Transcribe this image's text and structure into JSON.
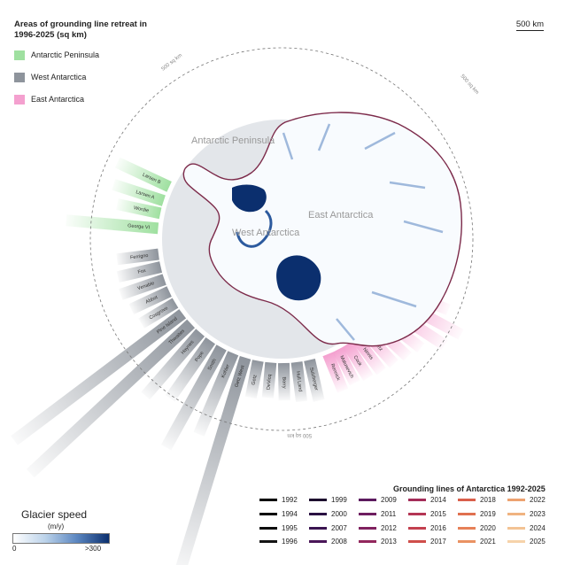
{
  "legend": {
    "title": "Areas of grounding line retreat in 1996-2025 (sq km)",
    "items": [
      {
        "label": "Antarctic Peninsula",
        "color": "#9fe0a0"
      },
      {
        "label": "West Antarctica",
        "color": "#8e949c"
      },
      {
        "label": "East Antarctica",
        "color": "#f4a0cf"
      }
    ]
  },
  "scale_bar": "500 km",
  "circle_labels": [
    "500 sq km",
    "500 sq km",
    "500 sq km"
  ],
  "region_labels": {
    "peninsula": "Antarctic Peninsula",
    "west": "West Antarctica",
    "east": "East Antarctica"
  },
  "glaciers": [
    {
      "name": "Larsen B",
      "region": "peninsula",
      "area": 90
    },
    {
      "name": "Larsen A",
      "region": "peninsula",
      "area": 80
    },
    {
      "name": "Wordie",
      "region": "peninsula",
      "area": 60
    },
    {
      "name": "George VI",
      "region": "peninsula",
      "area": 170
    },
    {
      "name": "Ferrigno",
      "region": "west",
      "area": 55
    },
    {
      "name": "Fox",
      "region": "west",
      "area": 60
    },
    {
      "name": "Venable",
      "region": "west",
      "area": 65
    },
    {
      "name": "Abbot",
      "region": "west",
      "area": 55
    },
    {
      "name": "Cosgrove",
      "region": "west",
      "area": 50
    },
    {
      "name": "Pine Island",
      "region": "west",
      "area": 440
    },
    {
      "name": "Thwaites",
      "region": "west",
      "area": 460
    },
    {
      "name": "Haynes",
      "region": "west",
      "area": 150
    },
    {
      "name": "Pope",
      "region": "west",
      "area": 120
    },
    {
      "name": "Smith",
      "region": "west",
      "area": 220
    },
    {
      "name": "Kohler",
      "region": "west",
      "area": 160
    },
    {
      "name": "Getz West",
      "region": "west",
      "area": 480
    },
    {
      "name": "Getz",
      "region": "west",
      "area": 45
    },
    {
      "name": "DeVicq",
      "region": "west",
      "area": 40
    },
    {
      "name": "Berry",
      "region": "west",
      "area": 45
    },
    {
      "name": "Hull Land",
      "region": "west",
      "area": 50
    },
    {
      "name": "Sulzberger",
      "region": "west",
      "area": 55
    },
    {
      "name": "Rennick",
      "region": "east",
      "area": 50
    },
    {
      "name": "Matusevich",
      "region": "east",
      "area": 45
    },
    {
      "name": "Cook",
      "region": "east",
      "area": 50
    },
    {
      "name": "Ninnis",
      "region": "east",
      "area": 55
    },
    {
      "name": "Mertz",
      "region": "east",
      "area": 60
    },
    {
      "name": "Dibble",
      "region": "east",
      "area": 70
    },
    {
      "name": "Frost",
      "region": "east",
      "area": 80
    },
    {
      "name": "Moscow",
      "region": "east",
      "area": 120
    },
    {
      "name": "Totten",
      "region": "east",
      "area": 140
    },
    {
      "name": "Vanderford",
      "region": "east",
      "area": 90
    },
    {
      "name": "Denman",
      "region": "east",
      "area": 60
    }
  ],
  "grounding_lines": {
    "title": "Grounding lines of Antarctica 1992-2025",
    "years": [
      {
        "year": "1992",
        "color": "#000000"
      },
      {
        "year": "1994",
        "color": "#050505"
      },
      {
        "year": "1995",
        "color": "#0b0b0b"
      },
      {
        "year": "1996",
        "color": "#141414"
      },
      {
        "year": "1999",
        "color": "#1d0f2e"
      },
      {
        "year": "2000",
        "color": "#2a1142"
      },
      {
        "year": "2007",
        "color": "#3a1450"
      },
      {
        "year": "2008",
        "color": "#4a1658"
      },
      {
        "year": "2009",
        "color": "#5c1a5e"
      },
      {
        "year": "2011",
        "color": "#6e1e60"
      },
      {
        "year": "2012",
        "color": "#80225f"
      },
      {
        "year": "2013",
        "color": "#92275d"
      },
      {
        "year": "2014",
        "color": "#a42d59"
      },
      {
        "year": "2015",
        "color": "#b43554"
      },
      {
        "year": "2016",
        "color": "#c3404f"
      },
      {
        "year": "2017",
        "color": "#cf4e4b"
      },
      {
        "year": "2018",
        "color": "#d95f4b"
      },
      {
        "year": "2019",
        "color": "#e0704f"
      },
      {
        "year": "2020",
        "color": "#e68158"
      },
      {
        "year": "2021",
        "color": "#ea9263"
      },
      {
        "year": "2022",
        "color": "#eda270"
      },
      {
        "year": "2023",
        "color": "#f0b380"
      },
      {
        "year": "2024",
        "color": "#f3c394"
      },
      {
        "year": "2025",
        "color": "#f6d3aa"
      }
    ]
  },
  "speed_legend": {
    "title": "Glacier speed",
    "unit": "(m/y)",
    "min": "0",
    "max": ">300"
  }
}
